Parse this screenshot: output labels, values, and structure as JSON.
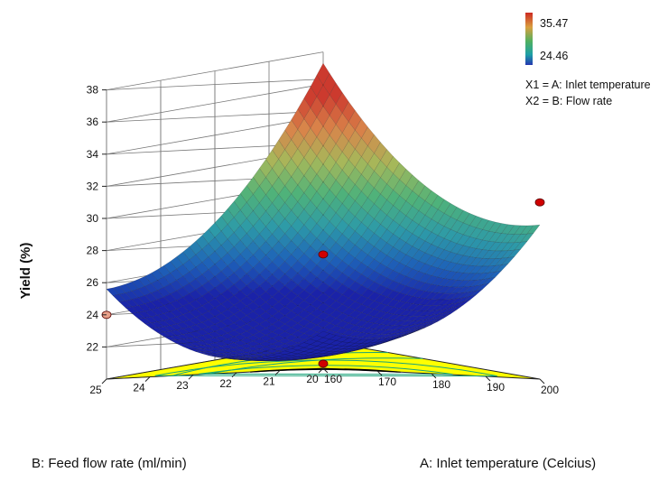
{
  "chart_data": {
    "type": "surface3d",
    "xlabel": "A: Inlet temperature (Celcius)",
    "ylabel": "B: Feed flow rate (ml/min)",
    "zlabel": "Yield (%)",
    "x_range": [
      160,
      200
    ],
    "y_range": [
      20,
      25
    ],
    "z_range": [
      20,
      38
    ],
    "x_ticks": [
      "160",
      "170",
      "180",
      "190",
      "200"
    ],
    "y_ticks": [
      "20",
      "21",
      "22",
      "23",
      "24",
      "25"
    ],
    "z_ticks": [
      "22",
      "24",
      "26",
      "28",
      "30",
      "32",
      "34",
      "36",
      "38"
    ],
    "surface_corners": [
      {
        "x": 160,
        "y": 20,
        "z": 22.3
      },
      {
        "x": 200,
        "y": 20,
        "z": 29.6
      },
      {
        "x": 160,
        "y": 25,
        "z": 25.6
      },
      {
        "x": 200,
        "y": 25,
        "z": 37.3
      }
    ],
    "surface_center": {
      "x": 180,
      "y": 22.5,
      "z": 22.9
    },
    "design_points": [
      {
        "x": 180,
        "y": 22.5,
        "z": 27.0,
        "side": "above"
      },
      {
        "x": 180,
        "y": 22.5,
        "z": 20.2,
        "side": "below"
      },
      {
        "x": 200,
        "y": 20,
        "z": 31.0,
        "side": "above"
      },
      {
        "x": 160,
        "y": 25,
        "z": 24.0,
        "side": "below"
      }
    ],
    "legend": {
      "max": "35.47",
      "min": "24.46",
      "factor1": "X1 = A: Inlet temperature",
      "factor2": "X2 = B: Flow rate"
    },
    "contour_floor": "yellow",
    "grid": true,
    "colormap": [
      "#1a22a8",
      "#1e62b8",
      "#2d9aa8",
      "#4fb27a",
      "#a6b85a",
      "#d9844a",
      "#cc3a2e"
    ]
  }
}
